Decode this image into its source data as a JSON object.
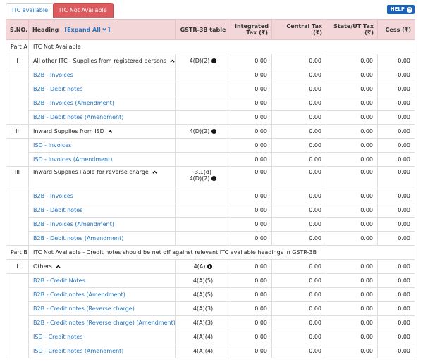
{
  "tabs": [
    "ITC available",
    "ITC Not Available"
  ],
  "help": "HELP",
  "table": {
    "columns": [
      "S.NO.",
      "Heading",
      "GSTR-3B table",
      "Integrated Tax (₹)",
      "Central Tax (₹)",
      "State/UT Tax (₹)",
      "Cess (₹)"
    ],
    "expand_all": "[Expand All",
    "expand_all_close": "]",
    "parts": [
      {
        "label": "Part A",
        "title": "ITC Not Available",
        "sections": [
          {
            "sno": "I",
            "heading": "All other ITC - Supplies from registered persons",
            "gstr": [
              "4(D)(2)"
            ],
            "values": [
              "0.00",
              "0.00",
              "0.00",
              "0.00"
            ],
            "items": [
              {
                "heading": "B2B - Invoices",
                "values": [
                  "0.00",
                  "0.00",
                  "0.00",
                  "0.00"
                ]
              },
              {
                "heading": "B2B - Debit notes",
                "values": [
                  "0.00",
                  "0.00",
                  "0.00",
                  "0.00"
                ]
              },
              {
                "heading": "B2B - Invoices (Amendment)",
                "values": [
                  "0.00",
                  "0.00",
                  "0.00",
                  "0.00"
                ]
              },
              {
                "heading": "B2B - Debit notes (Amendment)",
                "values": [
                  "0.00",
                  "0.00",
                  "0.00",
                  "0.00"
                ]
              }
            ]
          },
          {
            "sno": "II",
            "heading": "Inward Supplies from ISD",
            "gstr": [
              "4(D)(2)"
            ],
            "values": [
              "0.00",
              "0.00",
              "0.00",
              "0.00"
            ],
            "items": [
              {
                "heading": "ISD - Invoices",
                "values": [
                  "0.00",
                  "0.00",
                  "0.00",
                  "0.00"
                ]
              },
              {
                "heading": "ISD - Invoices (Amendment)",
                "values": [
                  "0.00",
                  "0.00",
                  "0.00",
                  "0.00"
                ]
              }
            ]
          },
          {
            "sno": "III",
            "heading": "Inward Supplies liable for reverse charge",
            "gstr": [
              "3.1(d)",
              "4(D)(2)"
            ],
            "values": [
              "0.00",
              "0.00",
              "0.00",
              "0.00"
            ],
            "items": [
              {
                "heading": "B2B - Invoices",
                "values": [
                  "0.00",
                  "0.00",
                  "0.00",
                  "0.00"
                ]
              },
              {
                "heading": "B2B - Debit notes",
                "values": [
                  "0.00",
                  "0.00",
                  "0.00",
                  "0.00"
                ]
              },
              {
                "heading": "B2B - Invoices (Amendment)",
                "values": [
                  "0.00",
                  "0.00",
                  "0.00",
                  "0.00"
                ]
              },
              {
                "heading": "B2B - Debit notes (Amendment)",
                "values": [
                  "0.00",
                  "0.00",
                  "0.00",
                  "0.00"
                ]
              }
            ]
          }
        ]
      },
      {
        "label": "Part B",
        "title": "ITC Not Available - Credit notes should be net off against relevant ITC available headings in GSTR-3B",
        "sections": [
          {
            "sno": "I",
            "heading": "Others",
            "gstr": [
              "4(A)"
            ],
            "values": [
              "0.00",
              "0.00",
              "0.00",
              "0.00"
            ],
            "items": [
              {
                "heading": "B2B - Credit Notes",
                "gstr": "4(A)(5)",
                "values": [
                  "0.00",
                  "0.00",
                  "0.00",
                  "0.00"
                ]
              },
              {
                "heading": "B2B - Credit notes (Amendment)",
                "gstr": "4(A)(5)",
                "values": [
                  "0.00",
                  "0.00",
                  "0.00",
                  "0.00"
                ]
              },
              {
                "heading": "B2B - Credit notes (Reverse charge)",
                "gstr": "4(A)(3)",
                "values": [
                  "0.00",
                  "0.00",
                  "0.00",
                  "0.00"
                ]
              },
              {
                "heading": "B2B - Credit notes (Reverse charge) (Amendment)",
                "gstr": "4(A)(3)",
                "values": [
                  "0.00",
                  "0.00",
                  "0.00",
                  "0.00"
                ]
              },
              {
                "heading": "ISD - Credit notes",
                "gstr": "4(A)(4)",
                "values": [
                  "0.00",
                  "0.00",
                  "0.00",
                  "0.00"
                ]
              },
              {
                "heading": "ISD - Credit notes (Amendment)",
                "gstr": "4(A)(4)",
                "values": [
                  "0.00",
                  "0.00",
                  "0.00",
                  "0.00"
                ]
              }
            ]
          }
        ]
      }
    ]
  }
}
